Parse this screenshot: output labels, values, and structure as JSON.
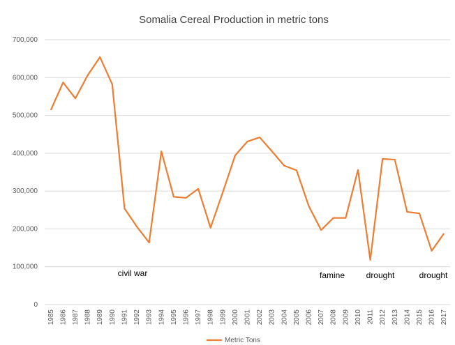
{
  "chart_data": {
    "type": "line",
    "title": "Somalia Cereal Production in metric tons",
    "categories": [
      "1985",
      "1986",
      "1987",
      "1988",
      "1989",
      "1990",
      "1991",
      "1992",
      "1993",
      "1994",
      "1995",
      "1996",
      "1997",
      "1998",
      "1999",
      "2000",
      "2001",
      "2002",
      "2003",
      "2004",
      "2005",
      "2006",
      "2007",
      "2008",
      "2009",
      "2010",
      "2011",
      "2012",
      "2013",
      "2014",
      "2015",
      "2016",
      "2017"
    ],
    "series": [
      {
        "name": "Metric Tons",
        "color": "#ED7D31",
        "values": [
          514000,
          587000,
          545000,
          606000,
          654000,
          582000,
          254000,
          206000,
          164000,
          405000,
          285000,
          282000,
          306000,
          203000,
          297000,
          394000,
          431000,
          442000,
          405000,
          367000,
          355000,
          260000,
          197000,
          229000,
          229000,
          356000,
          118000,
          385000,
          383000,
          245000,
          241000,
          142000,
          188000
        ]
      }
    ],
    "ylim": [
      0,
      700000
    ],
    "yticks": [
      0,
      {
        "value": 100000,
        "label": "100,000"
      },
      {
        "value": 200000,
        "label": "200,000"
      },
      {
        "value": 300000,
        "label": "300,000"
      },
      {
        "value": 400000,
        "label": "400,000"
      },
      {
        "value": 500000,
        "label": "500,000"
      },
      {
        "value": 600000,
        "label": "600,000"
      },
      {
        "value": 700000,
        "label": "700,000"
      }
    ],
    "grid": true,
    "legend": "bottom",
    "annotations": [
      "civil war",
      "famine",
      "drought",
      "drought"
    ]
  }
}
